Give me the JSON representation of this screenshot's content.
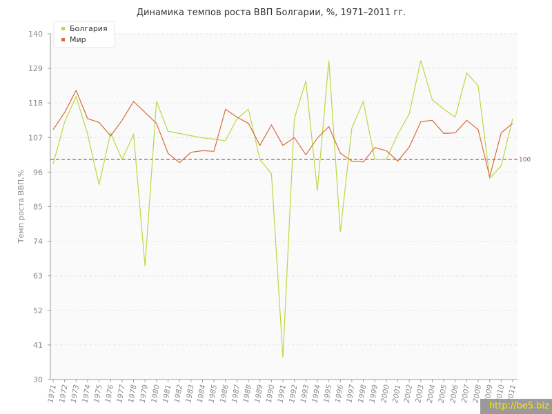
{
  "chart_data": {
    "type": "line",
    "title": "Динамика темпов роста ВВП Болгарии, %, 1971–2011 гг.",
    "xlabel": "",
    "ylabel": "Темп роста ВВП,%",
    "ylim": [
      30,
      140
    ],
    "yticks": [
      30,
      41,
      52,
      63,
      74,
      85,
      96,
      107,
      118,
      129,
      140
    ],
    "grid": true,
    "legend": "top-left",
    "x": [
      "1971",
      "1972",
      "1973",
      "1974",
      "1975",
      "1976",
      "1977",
      "1978",
      "1979",
      "1980",
      "1981",
      "1982",
      "1983",
      "1984",
      "1985",
      "1986",
      "1987",
      "1988",
      "1989",
      "1990",
      "1991",
      "1992",
      "1993",
      "1994",
      "1995",
      "1996",
      "1997",
      "1998",
      "1999",
      "2000",
      "2001",
      "2002",
      "2003",
      "2004",
      "2005",
      "2006",
      "2007",
      "2008",
      "2009",
      "2010",
      "2011"
    ],
    "series": [
      {
        "name": "Болгария",
        "color": "#b8d940",
        "values": [
          98.5,
          112,
          120,
          108,
          92,
          108.5,
          100,
          108,
          66,
          118.5,
          109,
          108.3,
          107.6,
          106.9,
          106.5,
          106,
          113,
          116,
          100,
          95.5,
          37,
          113,
          125,
          90,
          131.5,
          77,
          110,
          118.5,
          100,
          100,
          108,
          114.5,
          131.5,
          119,
          116,
          113.5,
          127.5,
          123.5,
          94,
          98,
          113
        ]
      },
      {
        "name": "Мир",
        "color": "#d96a3a",
        "values": [
          109.5,
          115,
          122,
          113,
          111.8,
          107.5,
          112.5,
          118.5,
          115,
          111.5,
          102,
          99,
          102.3,
          102.8,
          102.6,
          116,
          113.5,
          111.5,
          104.5,
          111,
          104.5,
          107,
          101.5,
          106.8,
          110.5,
          102,
          99.5,
          99.2,
          103.8,
          102.8,
          99.5,
          104,
          112,
          112.5,
          108.3,
          108.5,
          112.5,
          109.5,
          94.5,
          108.5,
          111.5
        ]
      }
    ],
    "reference_line": {
      "value": 100,
      "label": "100",
      "color": "#a04040"
    }
  },
  "watermark": "http://be5.biz"
}
